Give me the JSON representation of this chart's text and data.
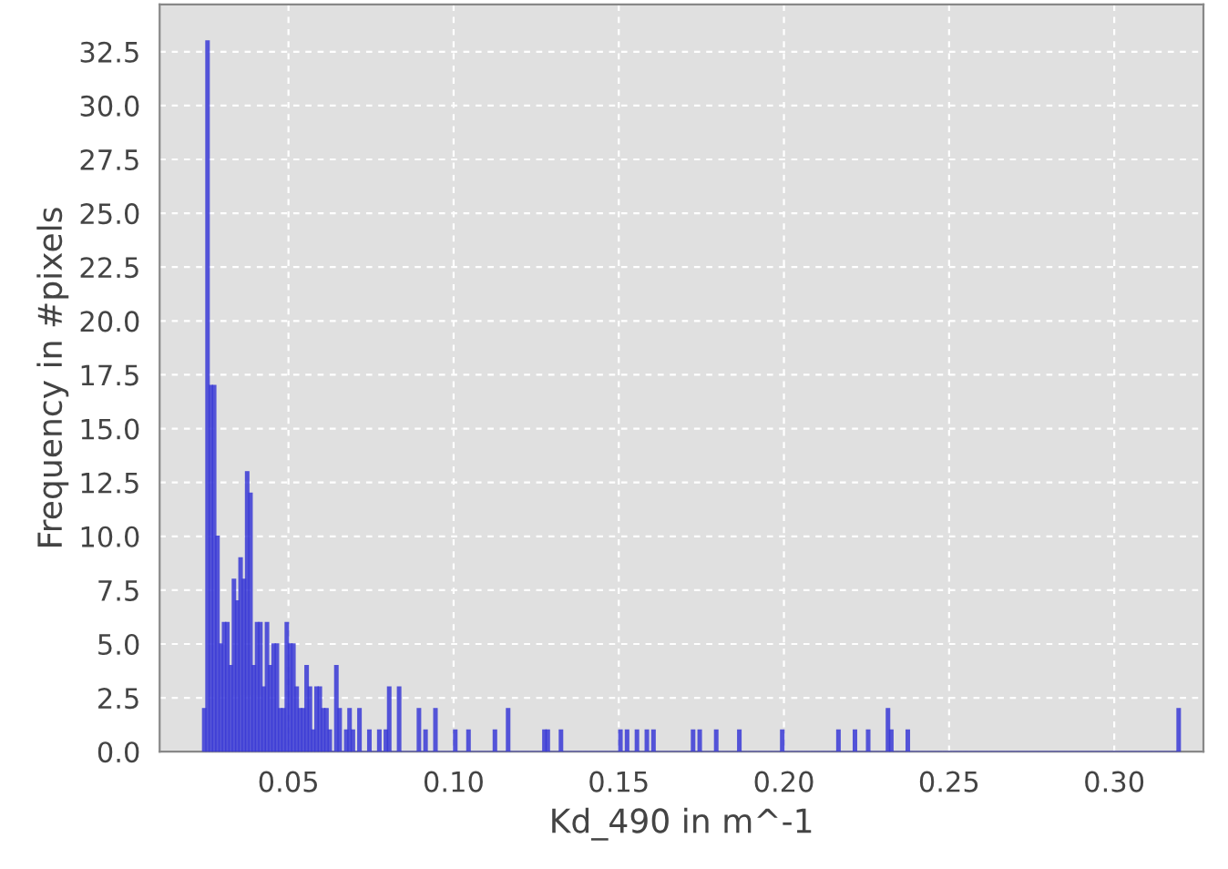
{
  "chart_data": {
    "type": "histogram",
    "xlabel": "Kd_490 in m^-1",
    "ylabel": "Frequency in #pixels",
    "color": "#3a3ad6",
    "grid": true,
    "bins": [
      0.024,
      0.025,
      0.026,
      0.027,
      0.028,
      0.029,
      0.03,
      0.031,
      0.032,
      0.033,
      0.034,
      0.035,
      0.036,
      0.037,
      0.038,
      0.039,
      0.04,
      0.041,
      0.042,
      0.043,
      0.044,
      0.045,
      0.046,
      0.047,
      0.048,
      0.049,
      0.05,
      0.051,
      0.052,
      0.053,
      0.054,
      0.055,
      0.056,
      0.057,
      0.058,
      0.059,
      0.06,
      0.061,
      0.062,
      0.063,
      0.064,
      0.065,
      0.066,
      0.067,
      0.068,
      0.069,
      0.07,
      0.071,
      0.072,
      0.073,
      0.074,
      0.075,
      0.076,
      0.077,
      0.078,
      0.079,
      0.08,
      0.081,
      0.082,
      0.083,
      0.084,
      0.085,
      0.086,
      0.087,
      0.088,
      0.089,
      0.09,
      0.091,
      0.092,
      0.093,
      0.094,
      0.095,
      0.096,
      0.097,
      0.098,
      0.099,
      0.1,
      0.101,
      0.102,
      0.103,
      0.104,
      0.105,
      0.106,
      0.107,
      0.108,
      0.109,
      0.11,
      0.111,
      0.112,
      0.113,
      0.114,
      0.115,
      0.116,
      0.117,
      0.118,
      0.119,
      0.12,
      0.121,
      0.122,
      0.123,
      0.124,
      0.125,
      0.126,
      0.127,
      0.128,
      0.129,
      0.13,
      0.131,
      0.132,
      0.133,
      0.134,
      0.135,
      0.136,
      0.137,
      0.138,
      0.139,
      0.14,
      0.141,
      0.142,
      0.143,
      0.144,
      0.145,
      0.146,
      0.147,
      0.148,
      0.149,
      0.15,
      0.151,
      0.152,
      0.153,
      0.154,
      0.155,
      0.156,
      0.157,
      0.158,
      0.159,
      0.16,
      0.161,
      0.162,
      0.163,
      0.164,
      0.165,
      0.166,
      0.167,
      0.168,
      0.169,
      0.17,
      0.171,
      0.172,
      0.173,
      0.174,
      0.175,
      0.176,
      0.177,
      0.178,
      0.179,
      0.18,
      0.181,
      0.182,
      0.183,
      0.184,
      0.185,
      0.186,
      0.187,
      0.188,
      0.189,
      0.19,
      0.191,
      0.192,
      0.193,
      0.194,
      0.195,
      0.196,
      0.197,
      0.198,
      0.199,
      0.2,
      0.201,
      0.202,
      0.203,
      0.204,
      0.205,
      0.206,
      0.207,
      0.208,
      0.209,
      0.21,
      0.211,
      0.212,
      0.213,
      0.214,
      0.215,
      0.216,
      0.217,
      0.218,
      0.219,
      0.22,
      0.221,
      0.222,
      0.223,
      0.224,
      0.225,
      0.226,
      0.227,
      0.228,
      0.229,
      0.23,
      0.231,
      0.232,
      0.233,
      0.234,
      0.235,
      0.236,
      0.237,
      0.238,
      0.239,
      0.24,
      0.241,
      0.242,
      0.243,
      0.244,
      0.245,
      0.246,
      0.247,
      0.248,
      0.249,
      0.25,
      0.251,
      0.252,
      0.253,
      0.254,
      0.255,
      0.256,
      0.257,
      0.258,
      0.259,
      0.26,
      0.261,
      0.262,
      0.263,
      0.264,
      0.265,
      0.266,
      0.267,
      0.268,
      0.269,
      0.27,
      0.271,
      0.272,
      0.273,
      0.274,
      0.275,
      0.276,
      0.277,
      0.278,
      0.279,
      0.28,
      0.281,
      0.282,
      0.283,
      0.284,
      0.285,
      0.286,
      0.287,
      0.288,
      0.289,
      0.29,
      0.291,
      0.292,
      0.293,
      0.294,
      0.295,
      0.296,
      0.297,
      0.298,
      0.299,
      0.3,
      0.301,
      0.302,
      0.303,
      0.304,
      0.305,
      0.306,
      0.307,
      0.308,
      0.309,
      0.31,
      0.311,
      0.312,
      0.313,
      0.314,
      0.315,
      0.316,
      0.317,
      0.318,
      0.319,
      0.32
    ],
    "values": [
      2,
      33,
      17,
      17,
      10,
      5,
      6,
      6,
      4,
      8,
      7,
      9,
      8,
      13,
      12,
      4,
      6,
      6,
      3,
      6,
      4,
      5,
      5,
      2,
      2,
      6,
      5,
      5,
      3,
      2,
      2,
      4,
      3,
      1,
      3,
      3,
      2,
      2,
      1,
      0,
      4,
      2,
      0,
      1,
      2,
      1,
      0,
      2,
      0,
      0,
      1,
      0,
      0,
      1,
      0,
      1,
      3,
      0,
      0,
      3,
      0,
      0,
      0,
      0,
      0,
      2,
      0,
      1,
      0,
      0,
      2,
      0,
      0,
      0,
      0,
      0,
      1,
      0,
      0,
      0,
      1,
      0,
      0,
      0,
      0,
      0,
      0,
      0,
      1,
      0,
      0,
      0,
      2,
      0,
      0,
      0,
      0,
      0,
      0,
      0,
      0,
      0,
      0,
      1,
      1,
      0,
      0,
      0,
      1,
      0,
      0,
      0,
      0,
      0,
      0,
      0,
      0,
      0,
      0,
      0,
      0,
      0,
      0,
      0,
      0,
      0,
      1,
      0,
      1,
      0,
      0,
      1,
      0,
      0,
      1,
      0,
      1,
      0,
      0,
      0,
      0,
      0,
      0,
      0,
      0,
      0,
      0,
      0,
      1,
      0,
      1,
      0,
      0,
      0,
      0,
      1,
      0,
      0,
      0,
      0,
      0,
      0,
      1,
      0,
      0,
      0,
      0,
      0,
      0,
      0,
      0,
      0,
      0,
      0,
      0,
      1,
      0,
      0,
      0,
      0,
      0,
      0,
      0,
      0,
      0,
      0,
      0,
      0,
      0,
      0,
      0,
      0,
      1,
      0,
      0,
      0,
      0,
      1,
      0,
      0,
      0,
      1,
      0,
      0,
      0,
      0,
      0,
      2,
      1,
      0,
      0,
      0,
      0,
      1,
      0,
      0,
      0,
      0,
      0,
      0,
      0,
      0,
      0,
      0,
      0,
      0,
      0,
      0,
      0,
      0,
      0,
      0,
      0,
      0,
      0,
      0,
      0,
      0,
      0,
      0,
      0,
      0,
      0,
      0,
      0,
      0,
      0,
      0,
      0,
      0,
      0,
      0,
      0,
      0,
      0,
      0,
      0,
      0,
      0,
      0,
      0,
      0,
      0,
      0,
      0,
      0,
      0,
      0,
      0,
      0,
      0,
      0,
      0,
      0,
      0,
      0,
      0,
      0,
      0,
      0,
      0,
      0,
      0,
      0,
      0,
      0,
      0,
      0,
      0,
      0,
      0,
      0,
      0,
      0,
      0,
      2
    ],
    "xlim": [
      0.011,
      0.327
    ],
    "xticks": [
      0.05,
      {
        "value": 0.1,
        "label": "0.10"
      },
      0.15,
      {
        "value": 0.2,
        "label": "0.20"
      },
      0.25,
      {
        "value": 0.3,
        "label": "0.30"
      }
    ],
    "ylim": [
      0,
      34.7
    ],
    "yticks": [
      {
        "value": 0,
        "label": "0.0"
      },
      2.5,
      {
        "value": 5,
        "label": "5.0"
      },
      7.5,
      {
        "value": 10,
        "label": "10.0"
      },
      12.5,
      {
        "value": 15,
        "label": "15.0"
      },
      17.5,
      {
        "value": 20,
        "label": "20.0"
      },
      22.5,
      {
        "value": 25,
        "label": "25.0"
      },
      27.5,
      {
        "value": 30,
        "label": "30.0"
      },
      32.5
    ]
  }
}
